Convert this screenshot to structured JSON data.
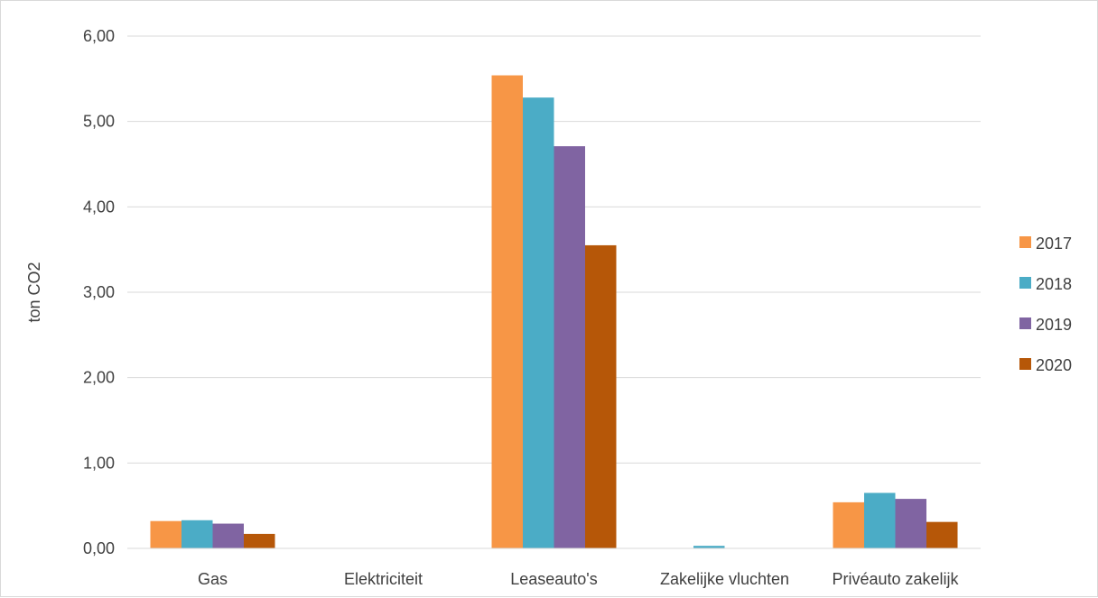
{
  "chart_data": {
    "type": "bar",
    "title": "",
    "xlabel": "",
    "ylabel": "ton CO2",
    "ylim": [
      0,
      6
    ],
    "yticks": [
      "0,00",
      "1,00",
      "2,00",
      "3,00",
      "4,00",
      "5,00",
      "6,00"
    ],
    "categories": [
      "Gas",
      "Elektriciteit",
      "Leaseauto's",
      "Zakelijke vluchten",
      "Privéauto zakelijk"
    ],
    "series": [
      {
        "name": "2017",
        "color": "#F79646",
        "values": [
          0.32,
          0,
          5.54,
          0,
          0.54
        ]
      },
      {
        "name": "2018",
        "color": "#4BACC6",
        "values": [
          0.33,
          0,
          5.28,
          0.03,
          0.65
        ]
      },
      {
        "name": "2019",
        "color": "#8064A2",
        "values": [
          0.29,
          0,
          4.71,
          0,
          0.58
        ]
      },
      {
        "name": "2020",
        "color": "#B65708",
        "values": [
          0.17,
          0,
          3.55,
          0,
          0.31
        ]
      }
    ],
    "grid": true,
    "legend_position": "right"
  }
}
